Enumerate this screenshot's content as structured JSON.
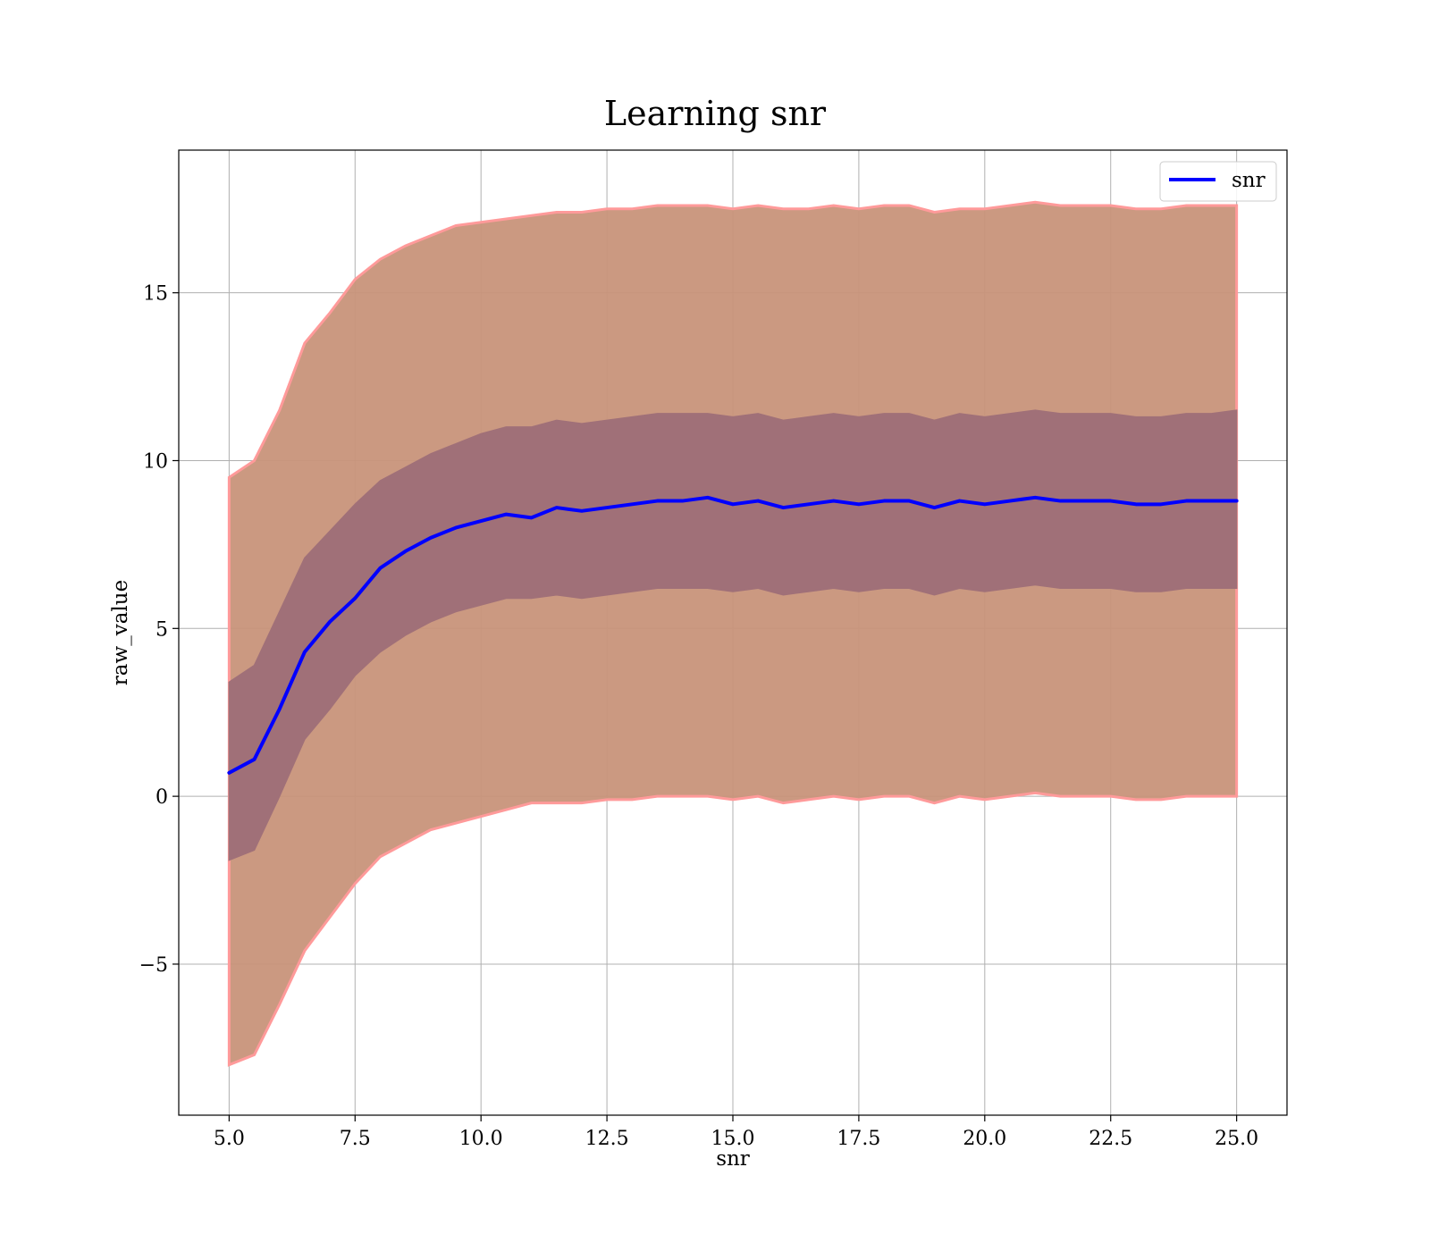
{
  "chart_data": {
    "type": "line",
    "title": "Learning snr",
    "xlabel": "snr",
    "ylabel": "raw_value",
    "xlim": [
      4.0,
      26.0
    ],
    "ylim": [
      -9.5,
      19.25
    ],
    "grid": true,
    "legend_position": "top-right",
    "x_ticks": [
      5.0,
      7.5,
      10.0,
      12.5,
      15.0,
      17.5,
      20.0,
      22.5,
      25.0
    ],
    "x_tick_labels": [
      "5.0",
      "7.5",
      "10.0",
      "12.5",
      "15.0",
      "17.5",
      "20.0",
      "22.5",
      "25.0"
    ],
    "y_ticks": [
      -5,
      0,
      5,
      10,
      15
    ],
    "y_tick_labels": [
      "−5",
      "0",
      "5",
      "10",
      "15"
    ],
    "colors": {
      "mean_line": "#0000ff",
      "outer_band": "#c8947a",
      "outer_band_edge": "#ff9a9a",
      "inner_band": "#a07078",
      "grid": "#b0b0b0"
    },
    "x": [
      5.0,
      5.5,
      6.0,
      6.5,
      7.0,
      7.5,
      8.0,
      8.5,
      9.0,
      9.5,
      10.0,
      10.5,
      11.0,
      11.5,
      12.0,
      12.5,
      13.0,
      13.5,
      14.0,
      14.5,
      15.0,
      15.5,
      16.0,
      16.5,
      17.0,
      17.5,
      18.0,
      18.5,
      19.0,
      19.5,
      20.0,
      20.5,
      21.0,
      21.5,
      22.0,
      22.5,
      23.0,
      23.5,
      24.0,
      24.5,
      25.0
    ],
    "series": [
      {
        "name": "snr",
        "values": [
          0.7,
          1.1,
          2.6,
          4.3,
          5.2,
          5.9,
          6.8,
          7.3,
          7.7,
          8.0,
          8.2,
          8.4,
          8.3,
          8.6,
          8.5,
          8.6,
          8.7,
          8.8,
          8.8,
          8.9,
          8.7,
          8.8,
          8.6,
          8.7,
          8.8,
          8.7,
          8.8,
          8.8,
          8.6,
          8.8,
          8.7,
          8.8,
          8.9,
          8.8,
          8.8,
          8.8,
          8.7,
          8.7,
          8.8,
          8.8,
          8.8
        ]
      }
    ],
    "bands": [
      {
        "role": "outer",
        "upper": [
          9.5,
          10.0,
          11.5,
          13.5,
          14.4,
          15.4,
          16.0,
          16.4,
          16.7,
          17.0,
          17.1,
          17.2,
          17.3,
          17.4,
          17.4,
          17.5,
          17.5,
          17.6,
          17.6,
          17.6,
          17.5,
          17.6,
          17.5,
          17.5,
          17.6,
          17.5,
          17.6,
          17.6,
          17.4,
          17.5,
          17.5,
          17.6,
          17.7,
          17.6,
          17.6,
          17.6,
          17.5,
          17.5,
          17.6,
          17.6,
          17.6
        ],
        "lower": [
          -8.0,
          -7.7,
          -6.2,
          -4.6,
          -3.6,
          -2.6,
          -1.8,
          -1.4,
          -1.0,
          -0.8,
          -0.6,
          -0.4,
          -0.2,
          -0.2,
          -0.2,
          -0.1,
          -0.1,
          0.0,
          0.0,
          0.0,
          -0.1,
          0.0,
          -0.2,
          -0.1,
          0.0,
          -0.1,
          0.0,
          0.0,
          -0.2,
          0.0,
          -0.1,
          0.0,
          0.1,
          0.0,
          0.0,
          0.0,
          -0.1,
          -0.1,
          0.0,
          0.0,
          0.0
        ]
      },
      {
        "role": "inner",
        "upper": [
          3.4,
          3.9,
          5.5,
          7.1,
          7.9,
          8.7,
          9.4,
          9.8,
          10.2,
          10.5,
          10.8,
          11.0,
          11.0,
          11.2,
          11.1,
          11.2,
          11.3,
          11.4,
          11.4,
          11.4,
          11.3,
          11.4,
          11.2,
          11.3,
          11.4,
          11.3,
          11.4,
          11.4,
          11.2,
          11.4,
          11.3,
          11.4,
          11.5,
          11.4,
          11.4,
          11.4,
          11.3,
          11.3,
          11.4,
          11.4,
          11.5
        ],
        "lower": [
          -1.9,
          -1.6,
          0.0,
          1.7,
          2.6,
          3.6,
          4.3,
          4.8,
          5.2,
          5.5,
          5.7,
          5.9,
          5.9,
          6.0,
          5.9,
          6.0,
          6.1,
          6.2,
          6.2,
          6.2,
          6.1,
          6.2,
          6.0,
          6.1,
          6.2,
          6.1,
          6.2,
          6.2,
          6.0,
          6.2,
          6.1,
          6.2,
          6.3,
          6.2,
          6.2,
          6.2,
          6.1,
          6.1,
          6.2,
          6.2,
          6.2
        ]
      }
    ]
  }
}
